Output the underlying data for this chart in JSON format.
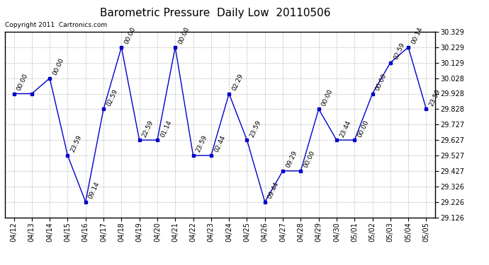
{
  "title": "Barometric Pressure  Daily Low  20110506",
  "copyright": "Copyright 2011  Cartronics.com",
  "background_color": "#ffffff",
  "plot_bg_color": "#ffffff",
  "line_color": "#0000cc",
  "marker_color": "#0000cc",
  "grid_color": "#bbbbbb",
  "dates": [
    "04/12",
    "04/13",
    "04/14",
    "04/15",
    "04/16",
    "04/17",
    "04/18",
    "04/19",
    "04/20",
    "04/21",
    "04/22",
    "04/23",
    "04/24",
    "04/25",
    "04/26",
    "04/27",
    "04/28",
    "04/29",
    "04/30",
    "05/01",
    "05/02",
    "05/03",
    "05/04",
    "05/05"
  ],
  "values": [
    29.928,
    29.928,
    30.028,
    29.527,
    29.226,
    29.828,
    30.229,
    29.627,
    29.627,
    30.229,
    29.527,
    29.527,
    29.928,
    29.627,
    29.226,
    29.427,
    29.427,
    29.828,
    29.627,
    29.627,
    29.928,
    30.129,
    30.229,
    29.828
  ],
  "point_labels": [
    "00:00",
    "",
    "00:00",
    "23:59",
    "09:14",
    "02:59",
    "00:00",
    "22:59",
    "01:14",
    "00:00",
    "23:59",
    "02:44",
    "02:29",
    "23:59",
    "09:44",
    "09:29",
    "00:00",
    "00:00",
    "23:44",
    "00:00",
    "00:00",
    "02:59",
    "00:14",
    "23:59"
  ],
  "ylim": [
    29.126,
    30.329
  ],
  "yticks": [
    29.126,
    29.226,
    29.326,
    29.427,
    29.527,
    29.627,
    29.727,
    29.828,
    29.928,
    30.028,
    30.129,
    30.229,
    30.329
  ],
  "ytick_labels": [
    "29.126",
    "29.226",
    "29.326",
    "29.427",
    "29.527",
    "29.627",
    "29.727",
    "29.828",
    "29.928",
    "30.028",
    "30.129",
    "30.229",
    "30.329"
  ],
  "title_fontsize": 11,
  "label_fontsize": 6.5,
  "tick_fontsize": 7,
  "copyright_fontsize": 6.5
}
